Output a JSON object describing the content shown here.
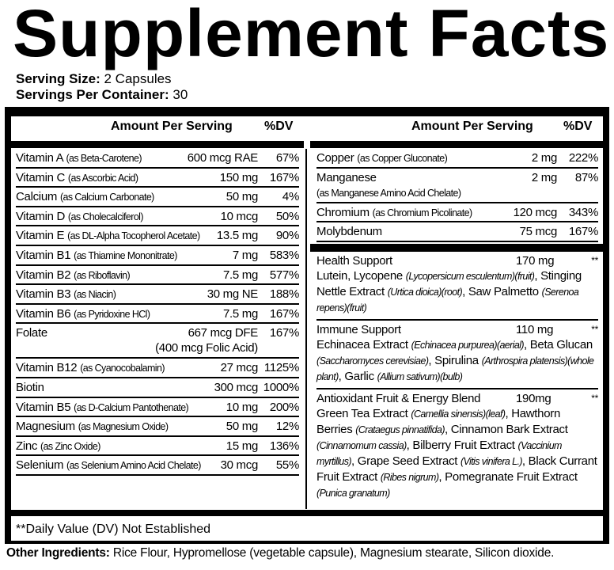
{
  "title": "Supplement Facts",
  "serving_size": {
    "label": "Serving Size:",
    "value": "2 Capsules"
  },
  "servings_per_container": {
    "label": "Servings Per Container:",
    "value": "30"
  },
  "headers": {
    "amount": "Amount Per Serving",
    "dv": "%DV"
  },
  "left_rows": [
    {
      "name": "Vitamin A",
      "source": "(as Beta-Carotene)",
      "amount": "600 mcg RAE",
      "dv": "67%"
    },
    {
      "name": "Vitamin C",
      "source": "(as Ascorbic Acid)",
      "amount": "150 mg",
      "dv": "167%"
    },
    {
      "name": "Calcium",
      "source": "(as Calcium Carbonate)",
      "amount": "50 mg",
      "dv": "4%"
    },
    {
      "name": "Vitamin D",
      "source": "(as Cholecalciferol)",
      "amount": "10 mcg",
      "dv": "50%"
    },
    {
      "name": "Vitamin E",
      "source": "(as DL-Alpha Tocopherol Acetate)",
      "amount": "13.5 mg",
      "dv": "90%"
    },
    {
      "name": "Vitamin B1",
      "source": "(as Thiamine Mononitrate)",
      "amount": "7 mg",
      "dv": "583%"
    },
    {
      "name": "Vitamin B2",
      "source": "(as Riboflavin)",
      "amount": "7.5 mg",
      "dv": "577%"
    },
    {
      "name": "Vitamin B3",
      "source": "(as Niacin)",
      "amount": "30 mg NE",
      "dv": "188%"
    },
    {
      "name": "Vitamin B6",
      "source": "(as Pyridoxine HCl)",
      "amount": "7.5 mg",
      "dv": "167%"
    },
    {
      "name": "Folate",
      "source": "",
      "amount": "667 mcg DFE",
      "amount2": "(400 mcg Folic Acid)",
      "dv": "167%"
    },
    {
      "name": "Vitamin B12",
      "source": "(as Cyanocobalamin)",
      "amount": "27 mcg",
      "dv": "1125%"
    },
    {
      "name": "Biotin",
      "source": "",
      "amount": "300 mcg",
      "dv": "1000%"
    },
    {
      "name": "Vitamin B5",
      "source": "(as D-Calcium Pantothenate)",
      "amount": "10 mg",
      "dv": "200%"
    },
    {
      "name": "Magnesium",
      "source": "(as Magnesium Oxide)",
      "amount": "50 mg",
      "dv": "12%"
    },
    {
      "name": "Zinc",
      "source": "(as Zinc Oxide)",
      "amount": "15 mg",
      "dv": "136%"
    },
    {
      "name": "Selenium",
      "source": "(as Selenium Amino Acid Chelate)",
      "amount": "30 mcg",
      "dv": "55%"
    }
  ],
  "right_rows": [
    {
      "name": "Copper",
      "source": "(as Copper Gluconate)",
      "amount": "2 mg",
      "dv": "222%"
    },
    {
      "name": "Manganese",
      "source": "(as Manganese Amino Acid Chelate)",
      "amount": "2 mg",
      "dv": "87%"
    },
    {
      "name": "Chromium",
      "source": "(as Chromium Picolinate)",
      "amount": "120 mcg",
      "dv": "343%"
    },
    {
      "name": "Molybdenum",
      "source": "",
      "amount": "75 mcg",
      "dv": "167%"
    }
  ],
  "blends": [
    {
      "name": "Health Support",
      "amount": "170 mg",
      "dv": "**",
      "html": "Lutein, Lycopene <i>(Lycopersicum esculentum)(fruit)</i>, Stinging Nettle Extract <i>(Urtica dioica)(root)</i>, Saw Palmetto <i>(Serenoa repens)(fruit)</i>"
    },
    {
      "name": "Immune Support",
      "amount": "110 mg",
      "dv": "**",
      "html": "Echinacea Extract <i>(Echinacea purpurea)(aerial)</i>, Beta Glucan <i>(Saccharomyces cerevisiae)</i>, Spirulina <i>(Arthrospira platensis)(whole plant)</i>, Garlic <i>(Allium sativum)(bulb)</i>"
    },
    {
      "name": "Antioxidant Fruit & Energy Blend",
      "amount": "190mg",
      "dv": "**",
      "html": "Green Tea Extract <i>(Camellia sinensis)(leaf)</i>, Hawthorn Berries <i>(Crataegus pinnatifida)</i>, Cinnamon Bark Extract <i>(Cinnamomum cassia)</i>, Bilberry Fruit Extract <i>(Vaccinium myrtillus)</i>, Grape Seed Extract <i>(Vitis vinifera L.)</i>, Black Currant Fruit Extract <i>(Ribes nigrum)</i>, Pomegranate Fruit Extract <i>(Punica granatum)</i>"
    }
  ],
  "footnote": "**Daily Value (DV) Not Established",
  "other_ingredients": {
    "label": "Other Ingredients:",
    "value": "Rice Flour, Hypromellose (vegetable capsule), Magnesium stearate, Silicon dioxide."
  }
}
